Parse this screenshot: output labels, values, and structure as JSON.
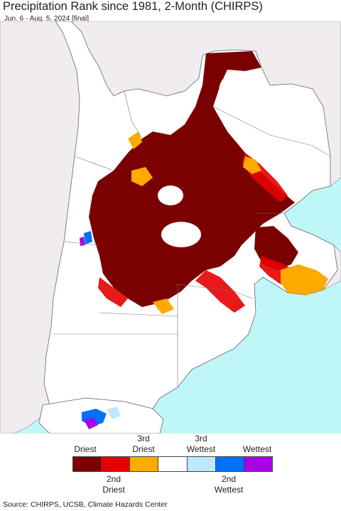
{
  "header": {
    "title": "Precipitation Rank since 1981, 2-Month (CHIRPS)",
    "subtitle": "Jun. 6 - Aug. 5, 2024 [final]"
  },
  "legend": {
    "top_labels": [
      {
        "line1": "",
        "line2": "Driest"
      },
      {
        "line1": "3rd",
        "line2": "Driest"
      },
      {
        "line1": "3rd",
        "line2": "Wettest"
      },
      {
        "line1": "",
        "line2": "Wettest"
      }
    ],
    "bottom_labels": [
      {
        "line1": "2nd",
        "line2": "Driest"
      },
      {
        "line1": "2nd",
        "line2": "Wettest"
      }
    ],
    "colors": {
      "driest": "#7b0000",
      "second_driest": "#e60000",
      "third_driest": "#ffaa00",
      "normal": "#ffffff",
      "third_wettest": "#bee8ff",
      "second_wettest": "#0070ff",
      "wettest": "#a900e6"
    }
  },
  "map_colors": {
    "ocean": "#bff7f8",
    "land_outside": "#f0ecf0",
    "land_region": "#ffffff",
    "border": "#777777"
  },
  "footer": {
    "source": "Source: CHIRPS, UCSB, Climate Hazards Center"
  }
}
